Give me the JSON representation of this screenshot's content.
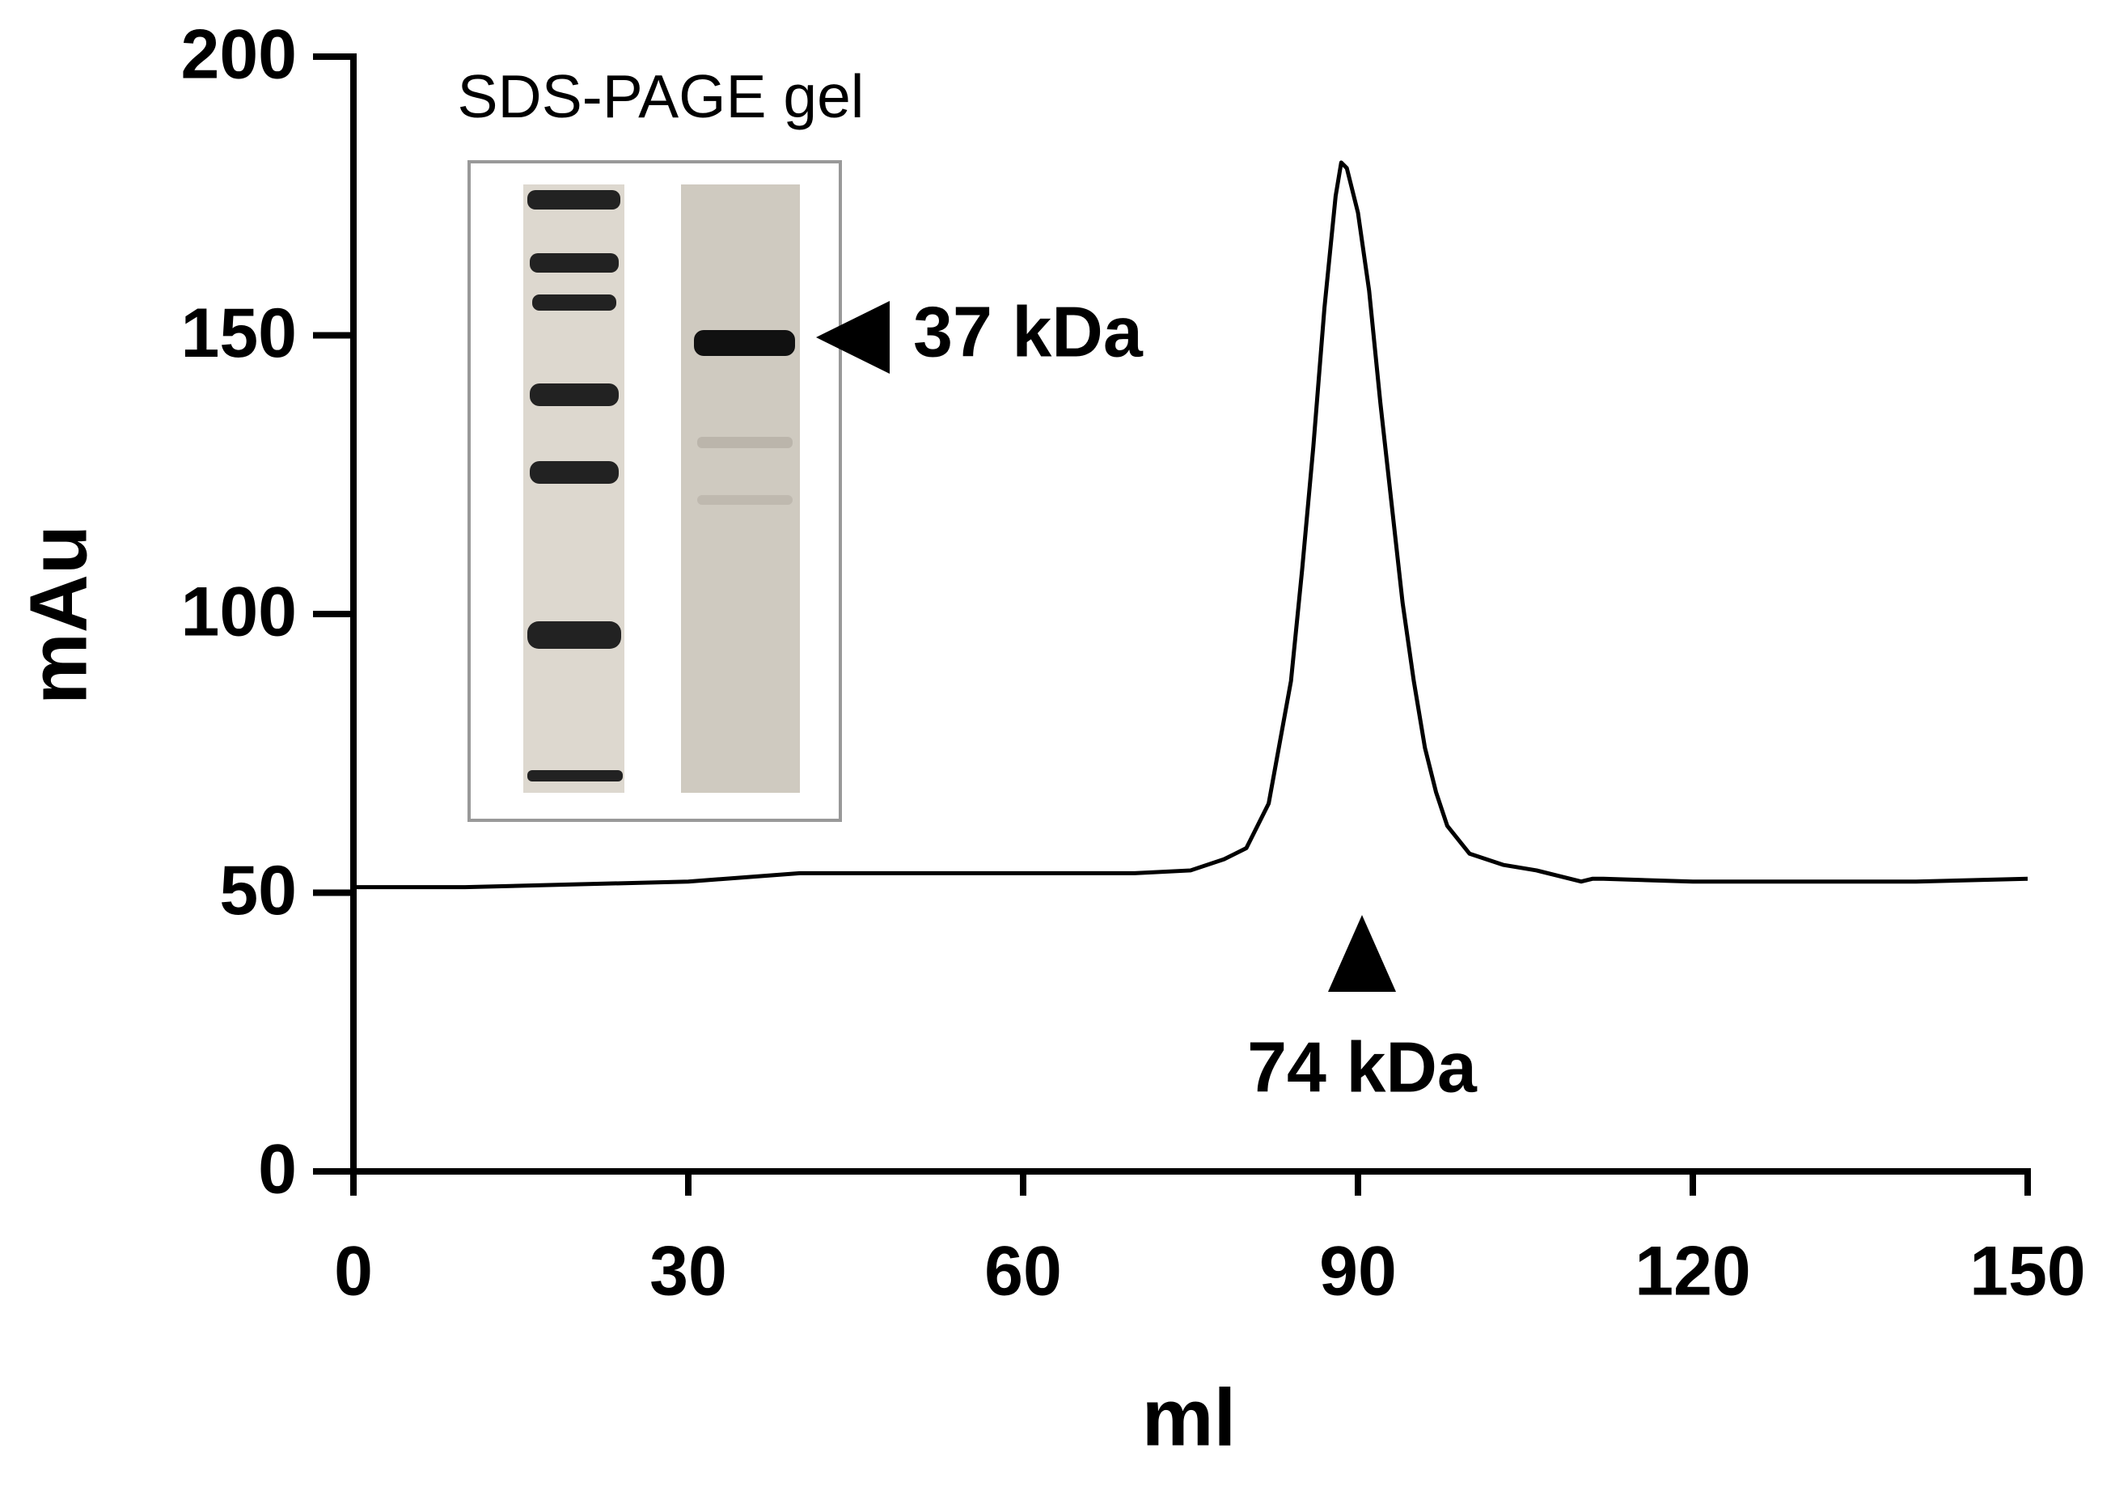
{
  "chart_data": {
    "type": "line",
    "x_label": "ml",
    "y_label": "mAu",
    "annotations": [
      "SDS-PAGE gel",
      "37 kDa",
      "74 kDa"
    ],
    "x": [
      0,
      10,
      20,
      30,
      40,
      50,
      60,
      70,
      75,
      78,
      80,
      82,
      84,
      85,
      86,
      87,
      88,
      88.5,
      89,
      90,
      91,
      92,
      93,
      94,
      95,
      96,
      97,
      98,
      100,
      103,
      106,
      108,
      110,
      111,
      112,
      120,
      130,
      140,
      150
    ],
    "series": [
      {
        "color": "#000000",
        "values": [
          51,
          51,
          51.5,
          52,
          53.5,
          53.5,
          53.5,
          53.5,
          54,
          56,
          58,
          66,
          88,
          108,
          130,
          155,
          175,
          181,
          180,
          172,
          158,
          138,
          120,
          102,
          88,
          76,
          68,
          62,
          57,
          55,
          54,
          53,
          52,
          52.5,
          52.5,
          52,
          52,
          52,
          52.5
        ]
      }
    ],
    "xlim": [
      0,
      150
    ],
    "xticks": [
      0,
      30,
      60,
      90,
      120,
      150
    ],
    "ylim": [
      0,
      200
    ],
    "yticks": [
      0,
      50,
      100,
      150,
      200
    ]
  }
}
